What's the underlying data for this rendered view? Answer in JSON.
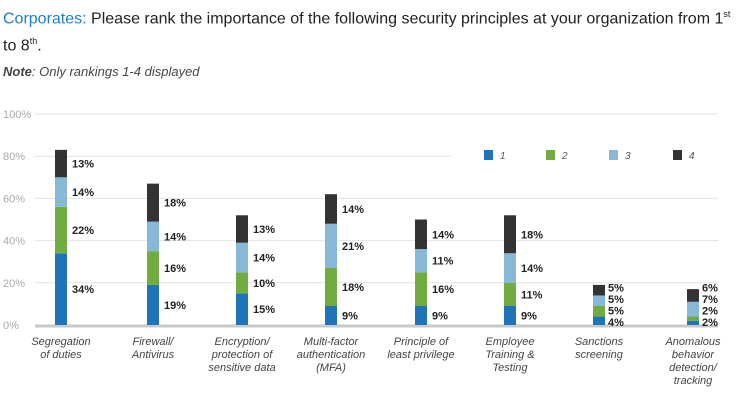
{
  "header": {
    "accent": "Corporates:",
    "title_main": " Please rank the importance of the following security principles at your organization from 1",
    "sup1": "st",
    "title_mid": " to 8",
    "sup2": "th",
    "title_end": ".",
    "note_bold": "Note",
    "note_text": ": Only rankings 1-4 displayed"
  },
  "chart_data": {
    "type": "bar",
    "stacked": true,
    "title": "Corporates: Please rank the importance of the following security principles at your organization from 1st to 8th.",
    "xlabel": "",
    "ylabel": "",
    "ylim": [
      0,
      100
    ],
    "yticks": [
      "0%",
      "20%",
      "40%",
      "60%",
      "80%",
      "100%"
    ],
    "grid": true,
    "legend_position": "top-right",
    "categories": [
      [
        "Segregation",
        "of duties"
      ],
      [
        "Firewall/",
        "Antivirus"
      ],
      [
        "Encryption/",
        "protection of",
        "sensitive data"
      ],
      [
        "Multi-factor",
        "authentication",
        "(MFA)"
      ],
      [
        "Principle of",
        "least privilege"
      ],
      [
        "Employee",
        "Training &",
        "Testing"
      ],
      [
        "Sanctions",
        "screening"
      ],
      [
        "Anomalous",
        "behavior",
        "detection/",
        "tracking"
      ]
    ],
    "series": [
      {
        "name": "1",
        "color": "#1f73b7",
        "values": [
          34,
          19,
          15,
          9,
          9,
          9,
          4,
          2
        ]
      },
      {
        "name": "2",
        "color": "#72ab3f",
        "values": [
          22,
          16,
          10,
          18,
          16,
          11,
          5,
          2
        ]
      },
      {
        "name": "3",
        "color": "#86b9d8",
        "values": [
          14,
          14,
          14,
          21,
          11,
          14,
          5,
          7
        ]
      },
      {
        "name": "4",
        "color": "#333333",
        "values": [
          13,
          18,
          13,
          14,
          14,
          18,
          5,
          6
        ]
      }
    ],
    "stacked_labels_anomalous": [
      "6%",
      "7%",
      "2%",
      "2%"
    ]
  }
}
